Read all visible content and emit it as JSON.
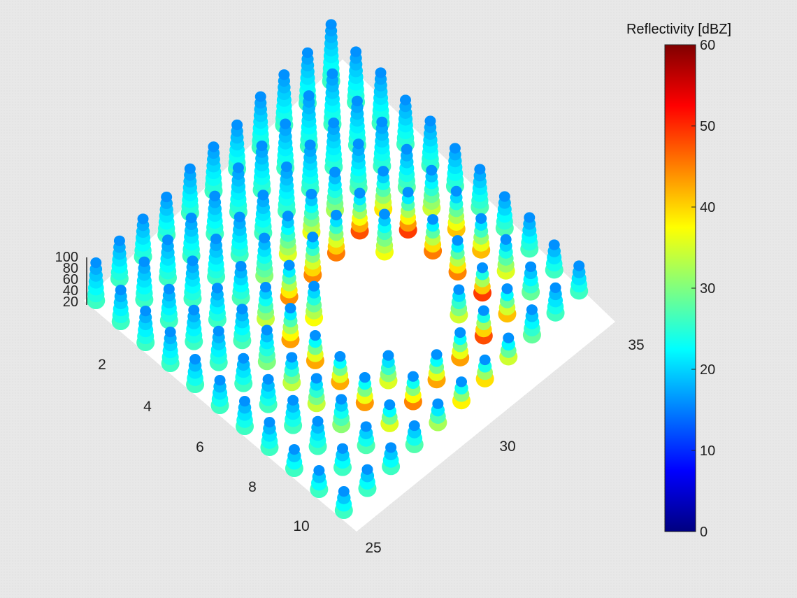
{
  "chart_data": {
    "type": "scatter",
    "subtype": "3d-column-scatter",
    "title": "",
    "xlabel": "",
    "ylabel": "",
    "zlabel": "",
    "x_ticks": [
      "2",
      "4",
      "6",
      "8",
      "10"
    ],
    "y_ticks": [
      "25",
      "30",
      "35"
    ],
    "z_ticks": [
      "20",
      "40",
      "60",
      "80",
      "100"
    ],
    "xlim": [
      0,
      11
    ],
    "ylim": [
      24,
      37
    ],
    "zlim": [
      0,
      100
    ],
    "colorbar": {
      "label": "Reflectivity [dBZ]",
      "range": [
        0,
        60
      ],
      "ticks": [
        "0",
        "10",
        "20",
        "30",
        "40",
        "50",
        "60"
      ],
      "colormap": "jet"
    },
    "description_values": {
      "ring_peak_dbz": 55,
      "ring_center": [
        6,
        31
      ],
      "column_top_dbz": 18
    }
  }
}
